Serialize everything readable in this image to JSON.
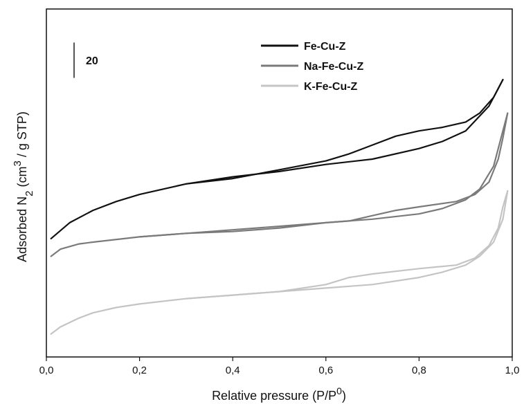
{
  "chart_data": {
    "type": "line",
    "xlabel": "Relative pressure (P/P",
    "xlabel_sup": "0",
    "xlabel_suffix": ")",
    "ylabel_parts": [
      "Adsorbed N",
      "2",
      " (cm",
      "3",
      " / g STP)"
    ],
    "xlim": [
      0,
      1
    ],
    "ylim": [
      0,
      197
    ],
    "x_ticks": [
      0,
      0.2,
      0.4,
      0.6,
      0.8,
      1.0
    ],
    "x_tick_labels": [
      "0,0",
      "0,2",
      "0,4",
      "0,6",
      "0,8",
      "1,0"
    ],
    "y_ticks_shown": false,
    "scale_bar": {
      "label": "20",
      "value": 20,
      "start": 158
    },
    "legend_position": "top-right",
    "series": [
      {
        "name": "Fe-Cu-Z",
        "color": "#111111",
        "adsorption": [
          [
            0.01,
            67
          ],
          [
            0.05,
            76
          ],
          [
            0.1,
            83
          ],
          [
            0.15,
            88
          ],
          [
            0.2,
            92
          ],
          [
            0.3,
            98
          ],
          [
            0.4,
            102
          ],
          [
            0.5,
            105
          ],
          [
            0.6,
            109
          ],
          [
            0.7,
            112
          ],
          [
            0.8,
            118
          ],
          [
            0.85,
            122
          ],
          [
            0.9,
            128
          ],
          [
            0.95,
            142
          ],
          [
            0.98,
            157
          ]
        ],
        "desorption": [
          [
            0.98,
            157
          ],
          [
            0.96,
            147
          ],
          [
            0.93,
            138
          ],
          [
            0.9,
            133
          ],
          [
            0.85,
            130
          ],
          [
            0.8,
            128
          ],
          [
            0.75,
            125
          ],
          [
            0.7,
            120
          ],
          [
            0.65,
            115
          ],
          [
            0.6,
            111
          ],
          [
            0.5,
            106
          ],
          [
            0.4,
            101
          ],
          [
            0.3,
            98
          ]
        ]
      },
      {
        "name": "Na-Fe-Cu-Z",
        "color": "#7a7a7a",
        "adsorption": [
          [
            0.01,
            57
          ],
          [
            0.03,
            61
          ],
          [
            0.07,
            64
          ],
          [
            0.1,
            65
          ],
          [
            0.2,
            68
          ],
          [
            0.3,
            70
          ],
          [
            0.4,
            72
          ],
          [
            0.5,
            74
          ],
          [
            0.6,
            76
          ],
          [
            0.7,
            78
          ],
          [
            0.8,
            81
          ],
          [
            0.85,
            84
          ],
          [
            0.9,
            89
          ],
          [
            0.93,
            95
          ],
          [
            0.96,
            108
          ],
          [
            0.98,
            128
          ],
          [
            0.99,
            138
          ]
        ],
        "desorption": [
          [
            0.99,
            138
          ],
          [
            0.98,
            124
          ],
          [
            0.97,
            112
          ],
          [
            0.95,
            99
          ],
          [
            0.92,
            92
          ],
          [
            0.88,
            88
          ],
          [
            0.8,
            85
          ],
          [
            0.75,
            83
          ],
          [
            0.7,
            80
          ],
          [
            0.65,
            77
          ],
          [
            0.6,
            76
          ],
          [
            0.5,
            73
          ],
          [
            0.4,
            71
          ],
          [
            0.3,
            70
          ],
          [
            0.2,
            68
          ]
        ]
      },
      {
        "name": "K-Fe-Cu-Z",
        "color": "#c4c4c4",
        "adsorption": [
          [
            0.01,
            13
          ],
          [
            0.03,
            17
          ],
          [
            0.07,
            22
          ],
          [
            0.1,
            25
          ],
          [
            0.15,
            28
          ],
          [
            0.2,
            30
          ],
          [
            0.3,
            33
          ],
          [
            0.4,
            35
          ],
          [
            0.5,
            37
          ],
          [
            0.6,
            39
          ],
          [
            0.7,
            41
          ],
          [
            0.8,
            45
          ],
          [
            0.85,
            48
          ],
          [
            0.9,
            52
          ],
          [
            0.93,
            57
          ],
          [
            0.96,
            65
          ],
          [
            0.98,
            78
          ],
          [
            0.99,
            94
          ]
        ],
        "desorption": [
          [
            0.99,
            94
          ],
          [
            0.98,
            85
          ],
          [
            0.97,
            73
          ],
          [
            0.95,
            63
          ],
          [
            0.92,
            56
          ],
          [
            0.88,
            52
          ],
          [
            0.8,
            50
          ],
          [
            0.7,
            47
          ],
          [
            0.65,
            45
          ],
          [
            0.6,
            41
          ],
          [
            0.5,
            37
          ],
          [
            0.4,
            35
          ],
          [
            0.3,
            33
          ]
        ]
      }
    ]
  }
}
